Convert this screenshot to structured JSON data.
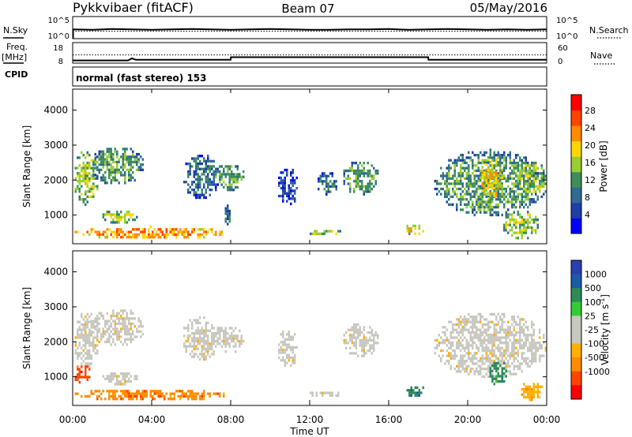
{
  "header": {
    "station": "Pykkvibaer (fitACF)",
    "beam": "Beam 07",
    "date": "05/May/2016"
  },
  "panel_labels": {
    "nsky": "N.Sky",
    "nsearch": "N.Search",
    "freq": "Freq.",
    "freq_unit": "[MHz]",
    "nave": "Nave",
    "cpid": "CPID",
    "mode": "normal (fast stereo) 153"
  },
  "colors": {
    "background": "#ffffff",
    "power_scale": [
      "#0000ff",
      "#1e3ea8",
      "#2f6b92",
      "#3d8e5a",
      "#9acd32",
      "#ffd700",
      "#ff8c00",
      "#ff4500",
      "#ff0000"
    ],
    "velocity_scale": [
      "#ff0000",
      "#ff4500",
      "#ff8c00",
      "#ffb000",
      "#c8c8c0",
      "#c8c8c0",
      "#32cd32",
      "#2e8b57",
      "#1e5aa8",
      "#2b3fb0"
    ]
  },
  "chart_data": [
    {
      "type": "line",
      "panel": "noise",
      "series": [
        {
          "name": "N.Sky",
          "values": [
            2.1,
            2.0,
            2.2,
            2.1,
            2.0,
            2.1,
            2.2,
            2.1,
            2.0,
            2.1,
            2.2,
            2.1,
            2.0,
            2.0,
            2.1,
            2.1,
            2.2,
            2.0,
            2.1,
            2.2,
            2.1,
            2.0,
            2.1,
            2.0,
            2.1
          ]
        }
      ],
      "x": [
        0,
        1,
        2,
        3,
        4,
        5,
        6,
        7,
        8,
        9,
        10,
        11,
        12,
        13,
        14,
        15,
        16,
        17,
        18,
        19,
        20,
        21,
        22,
        23,
        24
      ],
      "left_ticks": [
        "10^5",
        "10^0"
      ],
      "right_ticks": [
        "10^5",
        "10^0"
      ]
    },
    {
      "type": "line",
      "panel": "frequency",
      "series": [
        {
          "name": "Freq.",
          "x": [
            0,
            2.8,
            3.0,
            3.2,
            8.0,
            8.01,
            18.0,
            18.01,
            24
          ],
          "values": [
            9.3,
            9.3,
            10.3,
            9.6,
            9.6,
            10.9,
            10.9,
            9.6,
            9.6
          ]
        },
        {
          "name": "Nave",
          "x": [
            0,
            24
          ],
          "values": [
            12.0,
            12.0
          ]
        }
      ],
      "left_ticks": [
        "18",
        "8"
      ],
      "right_ticks": [
        "60",
        "0"
      ]
    },
    {
      "type": "heatmap",
      "panel": "power",
      "ylabel": "Slant Range [km]",
      "y_ticks": [
        1000,
        2000,
        3000,
        4000
      ],
      "ylim": [
        180,
        4600
      ],
      "colorbar_label": "Power [dB]",
      "colorbar_ticks": [
        "28",
        "24",
        "20",
        "16",
        "12",
        "8",
        "4"
      ],
      "regions": [
        {
          "t0": 0.0,
          "t1": 1.3,
          "r0": 1300,
          "r1": 2900,
          "level": 4
        },
        {
          "t0": 0.8,
          "t1": 3.6,
          "r0": 1900,
          "r1": 3000,
          "level": 3
        },
        {
          "t0": 1.4,
          "t1": 3.3,
          "r0": 800,
          "r1": 1200,
          "level": 4
        },
        {
          "t0": 0.0,
          "t1": 7.8,
          "r0": 350,
          "r1": 700,
          "level": 6
        },
        {
          "t0": 5.5,
          "t1": 7.4,
          "r0": 1500,
          "r1": 2800,
          "level": 2
        },
        {
          "t0": 7.0,
          "t1": 8.7,
          "r0": 1700,
          "r1": 2500,
          "level": 3
        },
        {
          "t0": 7.6,
          "t1": 8.0,
          "r0": 750,
          "r1": 1300,
          "level": 2
        },
        {
          "t0": 10.3,
          "t1": 11.4,
          "r0": 1300,
          "r1": 2400,
          "level": 1
        },
        {
          "t0": 11.8,
          "t1": 13.6,
          "r0": 450,
          "r1": 650,
          "level": 4
        },
        {
          "t0": 12.3,
          "t1": 13.4,
          "r0": 1600,
          "r1": 2300,
          "level": 2
        },
        {
          "t0": 13.6,
          "t1": 15.5,
          "r0": 1600,
          "r1": 2600,
          "level": 3
        },
        {
          "t0": 16.8,
          "t1": 17.8,
          "r0": 450,
          "r1": 800,
          "level": 5
        },
        {
          "t0": 18.2,
          "t1": 24.0,
          "r0": 1000,
          "r1": 2900,
          "level": 3
        },
        {
          "t0": 20.5,
          "t1": 21.8,
          "r0": 1400,
          "r1": 2700,
          "level": 5
        },
        {
          "t0": 21.7,
          "t1": 23.6,
          "r0": 350,
          "r1": 1200,
          "level": 4
        },
        {
          "t0": 22.3,
          "t1": 24.0,
          "r0": 1600,
          "r1": 2600,
          "level": 4
        }
      ]
    },
    {
      "type": "heatmap",
      "panel": "velocity",
      "xlabel": "Time UT",
      "ylabel": "Slant Range [km]",
      "y_ticks": [
        1000,
        2000,
        3000,
        4000
      ],
      "ylim": [
        180,
        4600
      ],
      "x_ticks": [
        "00:00",
        "04:00",
        "08:00",
        "12:00",
        "16:00",
        "20:00",
        "00:00"
      ],
      "colorbar_label": "Velocity [m s^-1]",
      "colorbar_ticks": [
        "1000",
        "500",
        "100",
        "25",
        "-25",
        "-100",
        "-500",
        "-1000"
      ],
      "regions": [
        {
          "t0": 0.0,
          "t1": 1.3,
          "r0": 1300,
          "r1": 2900,
          "level": 4
        },
        {
          "t0": 0.8,
          "t1": 3.6,
          "r0": 1900,
          "r1": 3000,
          "level": 4
        },
        {
          "t0": 1.4,
          "t1": 3.3,
          "r0": 800,
          "r1": 1200,
          "level": 4
        },
        {
          "t0": 0.0,
          "t1": 0.9,
          "r0": 850,
          "r1": 1400,
          "level": 1
        },
        {
          "t0": 0.0,
          "t1": 7.8,
          "r0": 350,
          "r1": 700,
          "level": 2
        },
        {
          "t0": 5.5,
          "t1": 7.4,
          "r0": 1500,
          "r1": 2800,
          "level": 4
        },
        {
          "t0": 7.0,
          "t1": 8.7,
          "r0": 1700,
          "r1": 2500,
          "level": 4
        },
        {
          "t0": 10.3,
          "t1": 11.4,
          "r0": 1300,
          "r1": 2400,
          "level": 4
        },
        {
          "t0": 11.8,
          "t1": 13.6,
          "r0": 450,
          "r1": 650,
          "level": 4
        },
        {
          "t0": 13.6,
          "t1": 15.5,
          "r0": 1600,
          "r1": 2600,
          "level": 4
        },
        {
          "t0": 16.8,
          "t1": 17.8,
          "r0": 450,
          "r1": 800,
          "level": 7
        },
        {
          "t0": 18.2,
          "t1": 24.0,
          "r0": 1000,
          "r1": 2900,
          "level": 4
        },
        {
          "t0": 21.0,
          "t1": 22.0,
          "r0": 800,
          "r1": 1500,
          "level": 7
        },
        {
          "t0": 22.6,
          "t1": 23.8,
          "r0": 350,
          "r1": 900,
          "level": 3
        }
      ]
    }
  ]
}
